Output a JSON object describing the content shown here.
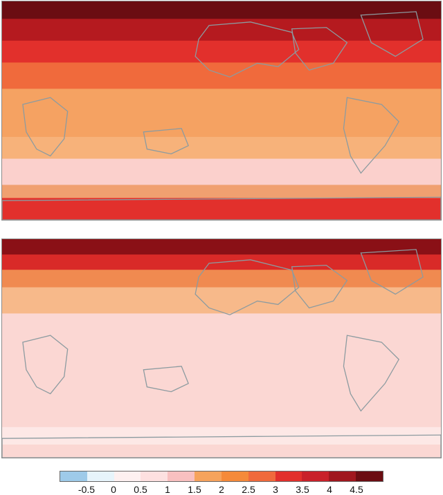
{
  "panels": [
    {
      "id": "map-top",
      "zones": [
        {
          "from": 0.0,
          "to": 0.08,
          "color": "#6b0d12"
        },
        {
          "from": 0.08,
          "to": 0.18,
          "color": "#b51a1f"
        },
        {
          "from": 0.18,
          "to": 0.28,
          "color": "#e2302c"
        },
        {
          "from": 0.28,
          "to": 0.4,
          "color": "#f06a3c"
        },
        {
          "from": 0.4,
          "to": 0.62,
          "color": "#f5a262"
        },
        {
          "from": 0.62,
          "to": 0.72,
          "color": "#f7b27a"
        },
        {
          "from": 0.72,
          "to": 0.84,
          "color": "#fbd0cc"
        },
        {
          "from": 0.84,
          "to": 0.9,
          "color": "#f0a070"
        },
        {
          "from": 0.9,
          "to": 1.0,
          "color": "#e2302c"
        }
      ]
    },
    {
      "id": "map-bottom",
      "zones": [
        {
          "from": 0.0,
          "to": 0.07,
          "color": "#8a1016"
        },
        {
          "from": 0.07,
          "to": 0.14,
          "color": "#d92a28"
        },
        {
          "from": 0.14,
          "to": 0.22,
          "color": "#f08a50"
        },
        {
          "from": 0.22,
          "to": 0.34,
          "color": "#f7b98a"
        },
        {
          "from": 0.34,
          "to": 0.86,
          "color": "#fbd7d3"
        },
        {
          "from": 0.86,
          "to": 0.94,
          "color": "#fde8e6"
        },
        {
          "from": 0.94,
          "to": 1.0,
          "color": "#fbd7d3"
        }
      ]
    }
  ],
  "colorbar": {
    "colors": [
      "#9ecae9",
      "#e7f4fb",
      "#fdf0f0",
      "#fde0e0",
      "#f8c0c0",
      "#f6a35c",
      "#f58a3a",
      "#f06a3c",
      "#e2302c",
      "#c9212a",
      "#a0171e",
      "#6b0d12"
    ],
    "ticks": [
      "-0.5",
      "0",
      "0.5",
      "1",
      "1.5",
      "2",
      "2.5",
      "3",
      "3.5",
      "4",
      "4.5"
    ]
  }
}
